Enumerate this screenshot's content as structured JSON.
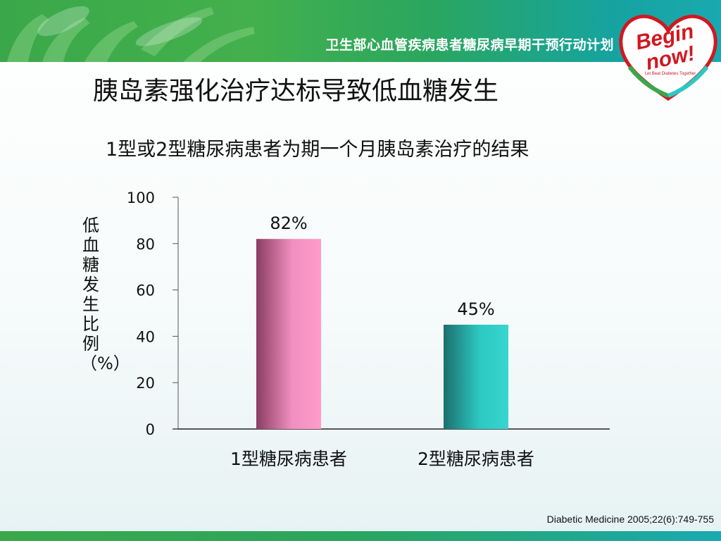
{
  "banner": {
    "text": "卫生部心血管疾病患者糖尿病早期干预行动计划",
    "logo_line1": "Begin",
    "logo_line2": "now!",
    "logo_tagline": "Let Beat Diabetes Together"
  },
  "title": "胰岛素强化治疗达标导致低血糖发生",
  "citation": "Diabetic Medicine 2005;22(6):749-755",
  "colors": {
    "banner_start": "#3aa84a",
    "banner_end": "#1aa9b0",
    "bar1": "#f08fc0",
    "bar2": "#2cc8c2",
    "logo_red": "#d01820"
  },
  "chart_data": {
    "type": "bar",
    "title": "1型或2型糖尿病患者为期一个月胰岛素治疗的结果",
    "ylabel": "低血糖发生比例（%）",
    "xlabel": "",
    "categories": [
      "1型糖尿病患者",
      "2型糖尿病患者"
    ],
    "values": [
      82,
      45
    ],
    "data_labels": [
      "82%",
      "45%"
    ],
    "ylim": [
      0,
      100
    ],
    "yticks": [
      0,
      20,
      40,
      60,
      80,
      100
    ],
    "grid": false,
    "legend": "none"
  }
}
